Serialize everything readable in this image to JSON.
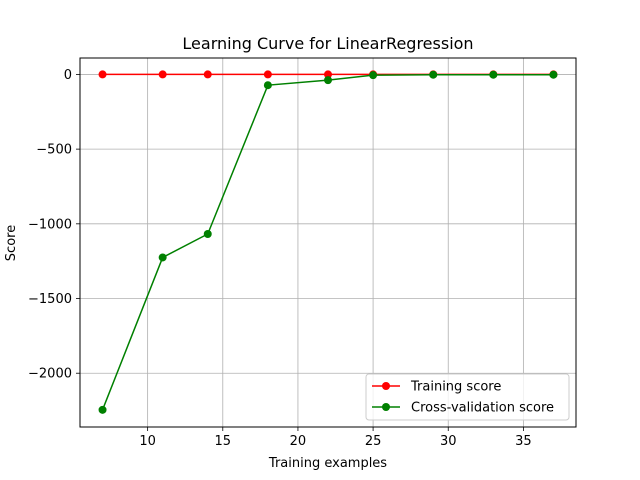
{
  "chart_data": {
    "type": "line",
    "title": "Learning Curve for LinearRegression",
    "xlabel": "Training examples",
    "ylabel": "Score",
    "xlim": [
      5.5,
      38.5
    ],
    "ylim": [
      -2360,
      110
    ],
    "xticks": [
      10,
      15,
      20,
      25,
      30,
      35
    ],
    "yticks": [
      0,
      -500,
      -1000,
      -1500,
      -2000
    ],
    "ytick_labels": [
      "0",
      "−500",
      "−1000",
      "−1500",
      "−2000"
    ],
    "grid": true,
    "legend_position": "lower-right",
    "x": [
      7,
      11,
      14,
      18,
      22,
      25,
      29,
      33,
      37
    ],
    "series": [
      {
        "name": "Training score",
        "color": "#ff0000",
        "values": [
          0,
          0,
          0,
          0,
          0,
          0,
          0,
          0,
          0
        ]
      },
      {
        "name": "Cross-validation score",
        "color": "#008000",
        "values": [
          -2245,
          -1225,
          -1068,
          -72,
          -38,
          -5,
          -2,
          -2,
          -2
        ]
      }
    ]
  }
}
